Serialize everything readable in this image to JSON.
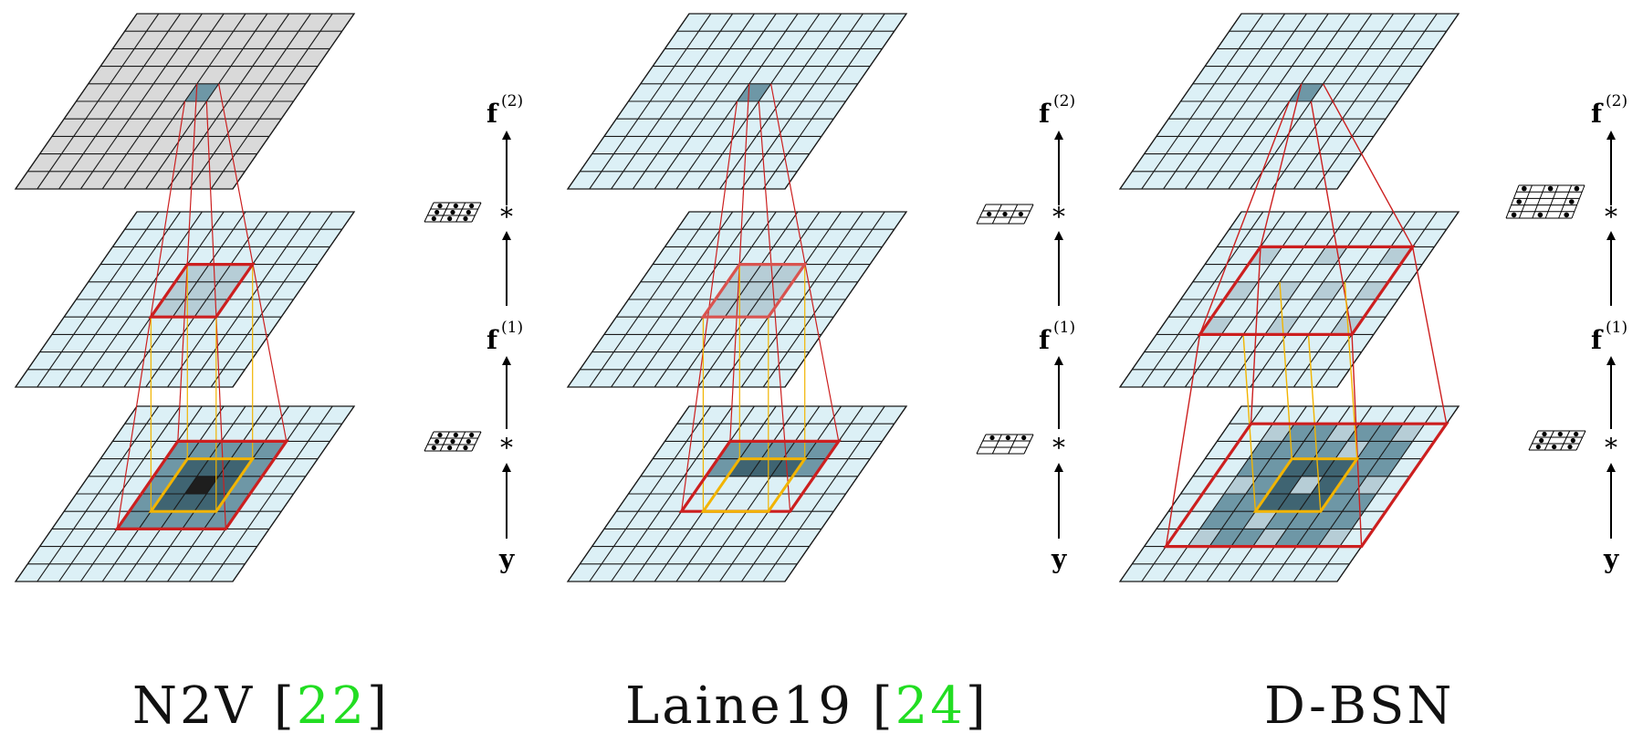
{
  "panels": [
    {
      "id": "n2v",
      "title_main": "N2V [",
      "title_ref": "22",
      "title_close": "]",
      "top_layer_color": "#d9d9d9"
    },
    {
      "id": "laine19",
      "title_main": "Laine19 [",
      "title_ref": "24",
      "title_close": "]",
      "top_layer_color": "#dcf0f6"
    },
    {
      "id": "dbsn",
      "title_main": "D-BSN",
      "title_ref": "",
      "title_close": "",
      "top_layer_color": "#dcf0f6"
    }
  ],
  "axis_labels": {
    "f2": "f",
    "f2_sup": "(2)",
    "f1": "f",
    "f1_sup": "(1)",
    "conv": "*",
    "y": "y"
  },
  "colors": {
    "grid_fill": "#dcf0f6",
    "grid_line": "#1a1a1a",
    "highlight": "#6e97a6",
    "dark_cell": "#3f6472",
    "center_cell": "#1e1e1e",
    "light_cell": "#b6cdd6",
    "red": "#cc1f1f",
    "yellow": "#f2b400",
    "citation": "#22dd22"
  }
}
